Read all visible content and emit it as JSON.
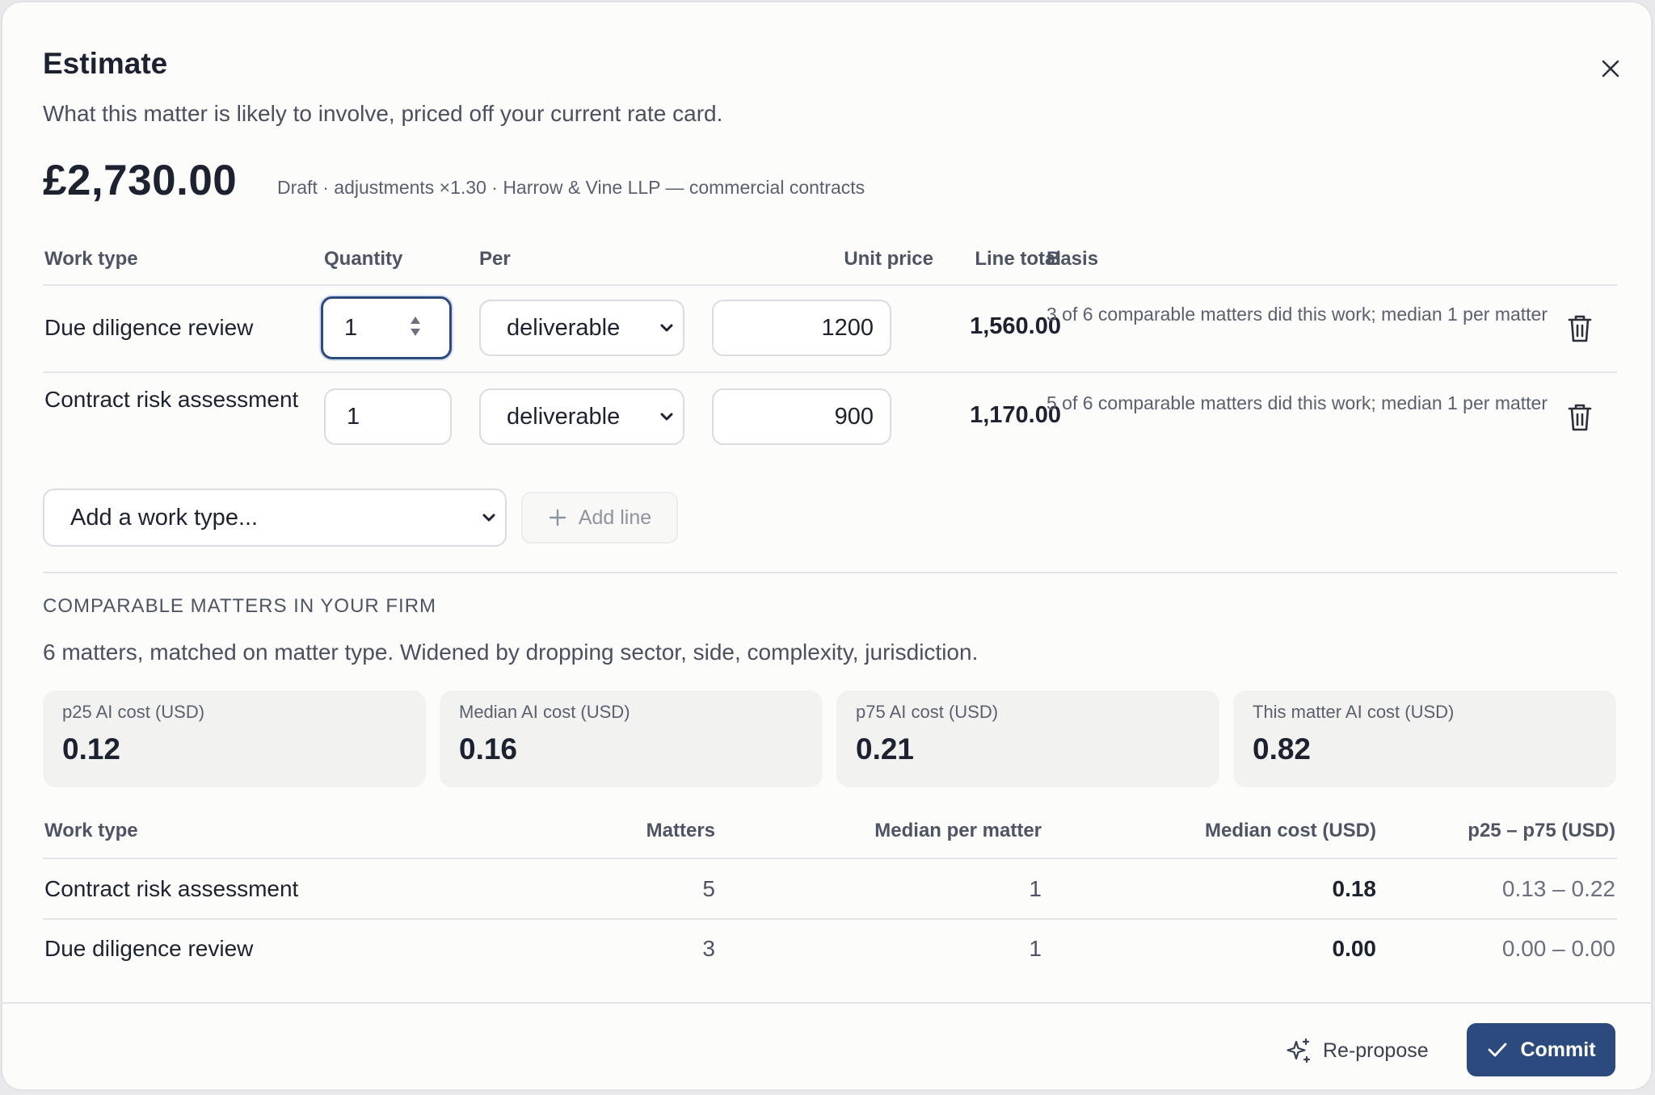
{
  "dialog": {
    "title": "Estimate",
    "subtitle": "What this matter is likely to involve, priced off your current rate card.",
    "total": "£2,730.00",
    "meta": "Draft · adjustments ×1.30 · Harrow & Vine LLP — commercial contracts"
  },
  "estimate_table": {
    "headers": {
      "work_type": "Work type",
      "quantity": "Quantity",
      "per": "Per",
      "unit_price": "Unit price",
      "line_total": "Line total",
      "basis": "Basis"
    },
    "rows": [
      {
        "work_type": "Due diligence review",
        "quantity": "1",
        "per": "deliverable",
        "unit_price": "1200",
        "line_total": "1,560.00",
        "basis": "3 of 6 comparable matters did this work; median 1 per matter"
      },
      {
        "work_type": "Contract risk assessment",
        "quantity": "1",
        "per": "deliverable",
        "unit_price": "900",
        "line_total": "1,170.00",
        "basis": "5 of 6 comparable matters did this work; median 1 per matter"
      }
    ],
    "add_select_placeholder": "Add a work type...",
    "add_line_label": "Add line"
  },
  "comparables": {
    "title": "COMPARABLE MATTERS IN YOUR FIRM",
    "description": "6 matters, matched on matter type. Widened by dropping sector, side, complexity, jurisdiction.",
    "stats": [
      {
        "label": "p25 AI cost (USD)",
        "value": "0.12"
      },
      {
        "label": "Median AI cost (USD)",
        "value": "0.16"
      },
      {
        "label": "p75 AI cost (USD)",
        "value": "0.21"
      },
      {
        "label": "This matter AI cost (USD)",
        "value": "0.82"
      }
    ],
    "headers": {
      "work_type": "Work type",
      "matters": "Matters",
      "median_per_matter": "Median per matter",
      "median_cost": "Median cost (USD)",
      "range": "p25 – p75 (USD)"
    },
    "rows": [
      {
        "work_type": "Contract risk assessment",
        "matters": "5",
        "median_per_matter": "1",
        "median_cost": "0.18",
        "range": "0.13 – 0.22"
      },
      {
        "work_type": "Due diligence review",
        "matters": "3",
        "median_per_matter": "1",
        "median_cost": "0.00",
        "range": "0.00 – 0.00"
      }
    ]
  },
  "footer": {
    "repropose_label": "Re-propose",
    "commit_label": "Commit"
  },
  "colors": {
    "accent": "#2c4a7e",
    "stat_bg": "#f2f2f0"
  },
  "icons": {
    "close": "close-icon",
    "spinner": "spinner-arrows-icon",
    "select": "chevron-down-icon",
    "delete": "trash-icon",
    "add": "plus-icon",
    "repropose": "sparkles-icon",
    "commit": "check-icon"
  }
}
